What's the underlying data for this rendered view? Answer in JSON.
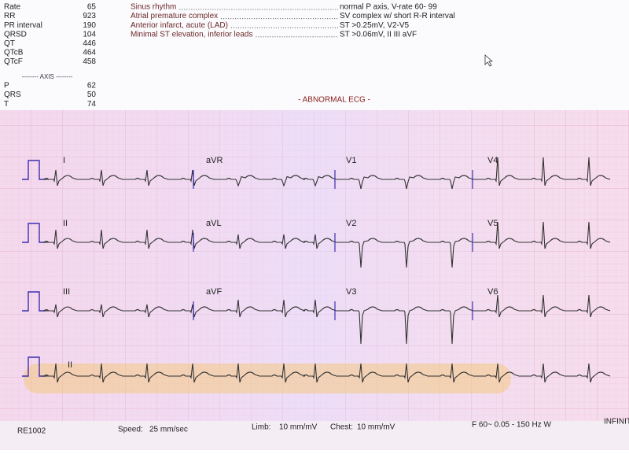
{
  "measurements": [
    {
      "label": "Rate",
      "value": 65
    },
    {
      "label": "RR",
      "value": 923
    },
    {
      "label": "PR interval",
      "value": 190
    },
    {
      "label": "QRSD",
      "value": 104
    },
    {
      "label": "QT",
      "value": 446
    },
    {
      "label": "QTcB",
      "value": 464
    },
    {
      "label": "QTcF",
      "value": 458
    }
  ],
  "axis_heading": "-------- AXIS --------",
  "axis": [
    {
      "label": "P",
      "value": 62
    },
    {
      "label": "QRS",
      "value": 50
    },
    {
      "label": "T",
      "value": 74
    }
  ],
  "interpretation": [
    {
      "finding": "Sinus rhythm",
      "criteria": "normal P axis, V-rate 60- 99"
    },
    {
      "finding": "Atrial premature complex",
      "criteria": "SV complex w/ short R-R interval"
    },
    {
      "finding": "Anterior infarct, acute (LAD)",
      "criteria": "ST >0.25mV, V2-V5"
    },
    {
      "finding": "Minimal ST elevation, inferior leads",
      "criteria": "ST >0.06mV, II III aVF"
    }
  ],
  "summary": "- ABNORMAL ECG -",
  "leads": [
    [
      "I",
      "aVR",
      "V1",
      "V4"
    ],
    [
      "II",
      "aVL",
      "V2",
      "V5"
    ],
    [
      "III",
      "aVF",
      "V3",
      "V6"
    ]
  ],
  "rhythm_lead": "II",
  "footer": {
    "device": "RE1002",
    "speed_label": "Speed:",
    "speed": "25 mm/sec",
    "limb_label": "Limb:",
    "limb": "10 mm/mV",
    "chest_label": "Chest:",
    "chest": "10 mm/mV",
    "filter": "F 60~  0.05 - 150 Hz W",
    "brand": "INFINITY"
  }
}
